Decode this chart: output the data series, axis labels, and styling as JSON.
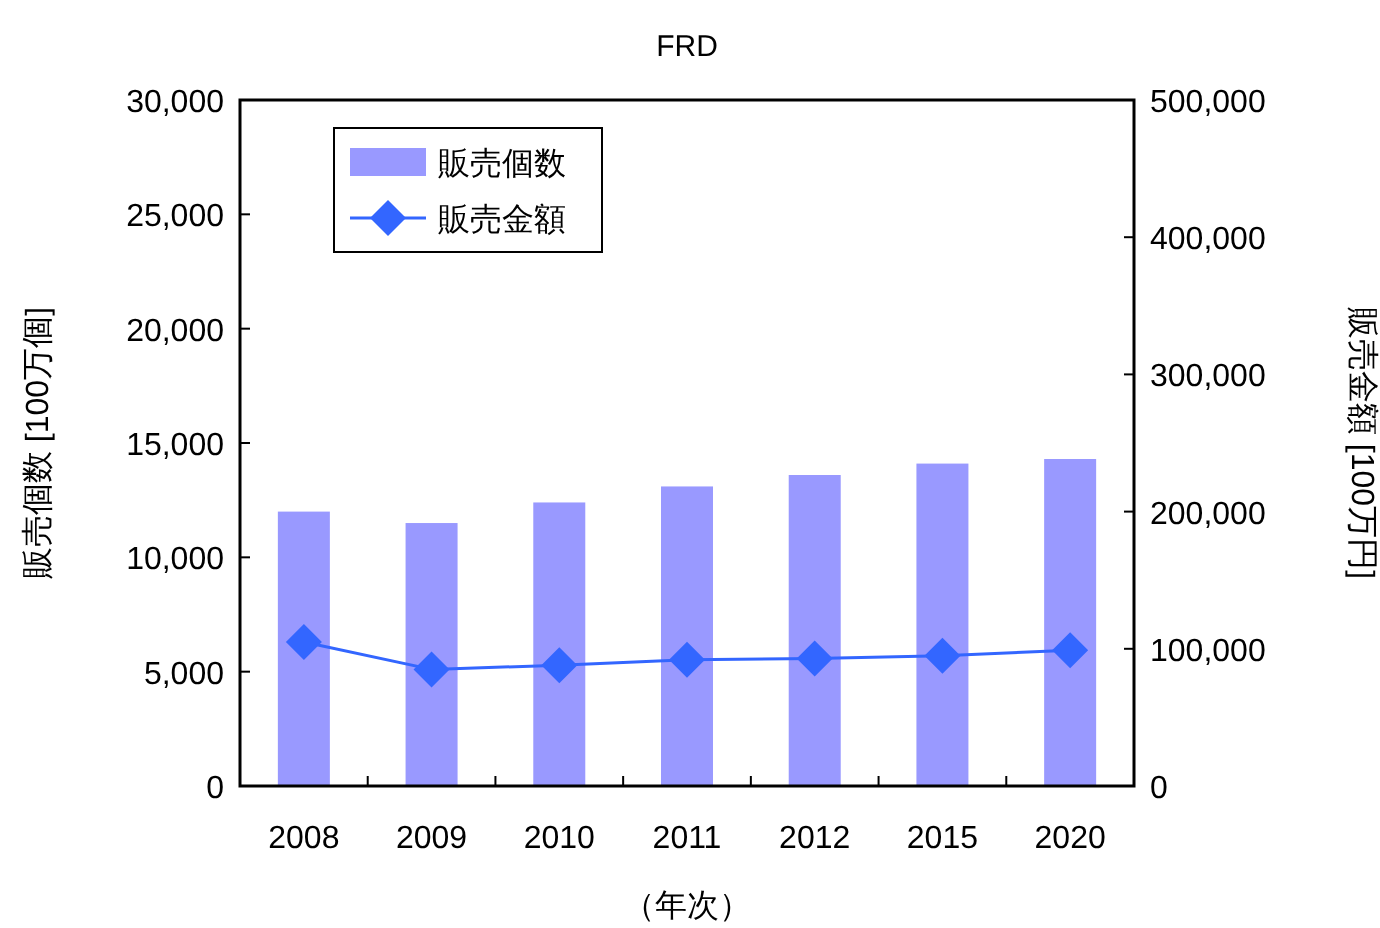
{
  "chart_data": {
    "type": "bar",
    "title": "FRD",
    "xlabel": "（年次）",
    "ylabel": "販売個数 [100万個]",
    "y2label": "販売金額 [100万円]",
    "categories": [
      "2008",
      "2009",
      "2010",
      "2011",
      "2012",
      "2015",
      "2020"
    ],
    "series": [
      {
        "name": "販売個数",
        "color": "#9999ff",
        "values": [
          12000,
          11500,
          12400,
          13100,
          13600,
          14100,
          14300
        ]
      },
      {
        "name": "販売金額",
        "type": "line",
        "axis": "y2",
        "color": "#3366ff",
        "marker": "diamond",
        "values": [
          105000,
          85000,
          88000,
          92000,
          93000,
          95000,
          99000
        ]
      }
    ],
    "ylim": [
      0,
      30000
    ],
    "yticks": [
      {
        "value": 0,
        "label": "0"
      },
      {
        "value": 5000,
        "label": "5,000"
      },
      {
        "value": 10000,
        "label": "10,000"
      },
      {
        "value": 15000,
        "label": "15,000"
      },
      {
        "value": 20000,
        "label": "20,000"
      },
      {
        "value": 25000,
        "label": "25,000"
      },
      {
        "value": 30000,
        "label": "30,000"
      }
    ],
    "y2lim": [
      0,
      500000
    ],
    "y2ticks": [
      {
        "value": 0,
        "label": "0"
      },
      {
        "value": 100000,
        "label": "100,000"
      },
      {
        "value": 200000,
        "label": "200,000"
      },
      {
        "value": 300000,
        "label": "300,000"
      },
      {
        "value": 400000,
        "label": "400,000"
      },
      {
        "value": 500000,
        "label": "500,000"
      }
    ],
    "grid": false,
    "legend": "top left"
  }
}
